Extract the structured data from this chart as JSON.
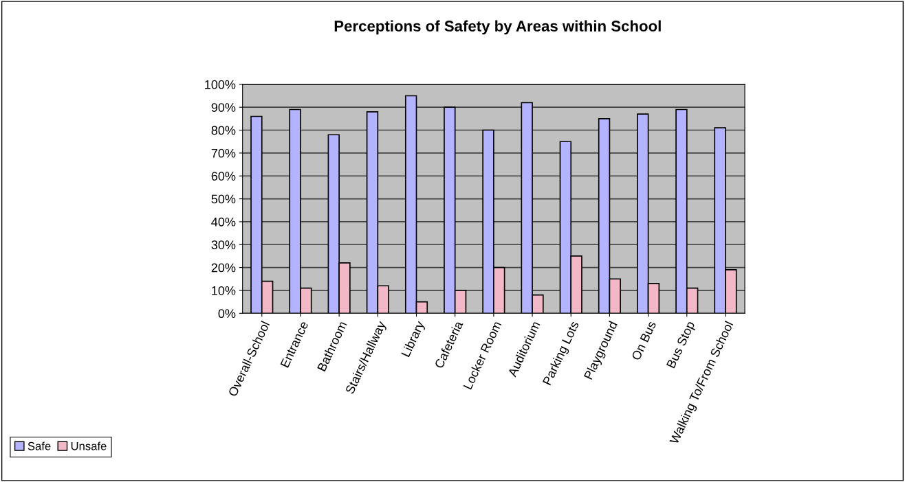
{
  "chart_data": {
    "type": "bar",
    "title": "Perceptions of Safety by Areas within School",
    "categories": [
      "Overall-School",
      "Entrance",
      "Bathroom",
      "Stairs/Hallway",
      "Library",
      "Cafeteria",
      "Locker Room",
      "Auditorium",
      "Parking Lots",
      "Playground",
      "On Bus",
      "Bus Stop",
      "Walking To/From School"
    ],
    "series": [
      {
        "name": "Safe",
        "color": "#b3b3ff",
        "values": [
          86,
          89,
          78,
          88,
          95,
          90,
          80,
          92,
          75,
          85,
          87,
          89,
          81
        ]
      },
      {
        "name": "Unsafe",
        "color": "#f2b8c8",
        "values": [
          14,
          11,
          22,
          12,
          5,
          10,
          20,
          8,
          25,
          15,
          13,
          11,
          19
        ]
      }
    ],
    "ylim": [
      0,
      100
    ],
    "yticks": [
      {
        "value": 0,
        "label": "0%"
      },
      {
        "value": 10,
        "label": "10%"
      },
      {
        "value": 20,
        "label": "20%"
      },
      {
        "value": 30,
        "label": "30%"
      },
      {
        "value": 40,
        "label": "40%"
      },
      {
        "value": 50,
        "label": "50%"
      },
      {
        "value": 60,
        "label": "60%"
      },
      {
        "value": 70,
        "label": "70%"
      },
      {
        "value": 80,
        "label": "80%"
      },
      {
        "value": 90,
        "label": "90%"
      },
      {
        "value": 100,
        "label": "100%"
      }
    ],
    "grid": "y",
    "legend": "bottom left"
  }
}
